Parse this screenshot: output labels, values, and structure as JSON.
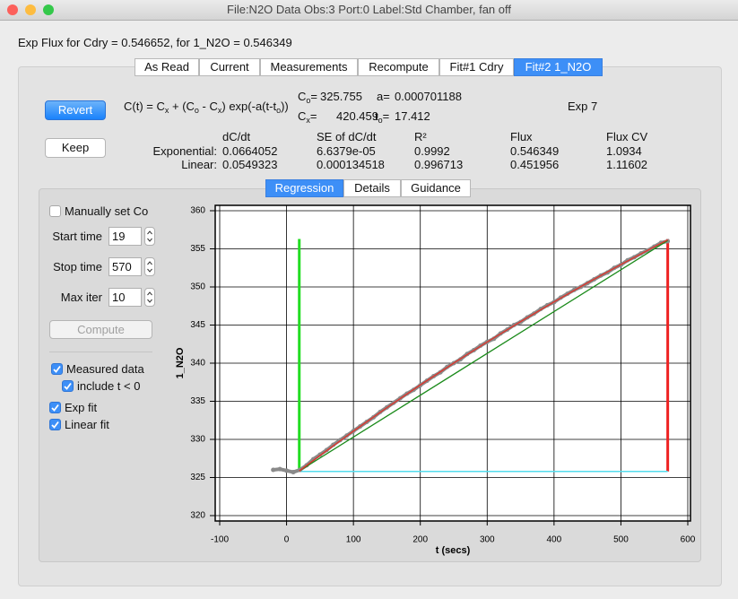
{
  "window": {
    "title": "File:N2O Data  Obs:3  Port:0  Label:Std Chamber, fan off"
  },
  "summary": "Exp Flux for Cdry = 0.546652, for 1_N2O = 0.546349",
  "tabs": {
    "items": [
      "As Read",
      "Current",
      "Measurements",
      "Recompute",
      "Fit#1 Cdry",
      "Fit#2 1_N2O"
    ],
    "active": 5
  },
  "buttons": {
    "revert": "Revert",
    "keep": "Keep"
  },
  "equation": [
    {
      "text": "C(t) = C"
    },
    {
      "text": "x",
      "sub": true
    },
    {
      "text": " + (C"
    },
    {
      "text": "o",
      "sub": true
    },
    {
      "text": " - C"
    },
    {
      "text": "x",
      "sub": true
    },
    {
      "text": ") exp(-a(t-t"
    },
    {
      "text": "o",
      "sub": true
    },
    {
      "text": "))"
    }
  ],
  "params": [
    {
      "name": "C",
      "sub": "o",
      "after": "=",
      "value": "325.755"
    },
    {
      "name": "a=",
      "value": "0.000701188"
    },
    {
      "name": "C",
      "sub": "x",
      "after": "=",
      "value": "420.459"
    },
    {
      "name": "t",
      "sub": "o",
      "after": "=",
      "value": "17.412"
    }
  ],
  "exp_label": "Exp 7",
  "results": {
    "columns": [
      "dC/dt",
      "SE of dC/dt",
      "R²",
      "Flux",
      "Flux CV"
    ],
    "rows": [
      {
        "label": "Exponential:",
        "cells": [
          "0.0664052",
          "6.6379e-05",
          "0.9992",
          "0.546349",
          "1.0934"
        ]
      },
      {
        "label": "Linear:",
        "cells": [
          "0.0549323",
          "0.000134518",
          "0.996713",
          "0.451956",
          "1.11602"
        ]
      }
    ]
  },
  "subtabs": {
    "items": [
      "Regression",
      "Details",
      "Guidance"
    ],
    "active": 0
  },
  "controls": {
    "manual_co": {
      "label": "Manually set Co",
      "checked": false
    },
    "fields": [
      {
        "label": "Start time",
        "value": "19"
      },
      {
        "label": "Stop time",
        "value": "570"
      },
      {
        "label": "Max iter",
        "value": "10"
      }
    ],
    "compute": "Compute",
    "checks": [
      {
        "label": "Measured data",
        "checked": true
      },
      {
        "label": "include t < 0",
        "checked": true,
        "indent": true
      },
      {
        "label": "Exp fit",
        "checked": true
      },
      {
        "label": "Linear fit",
        "checked": true
      }
    ]
  },
  "chart_data": {
    "type": "line",
    "xlabel": "t (secs)",
    "ylabel": "1_N2O",
    "xlim": [
      -100,
      600
    ],
    "xticks": [
      -100,
      0,
      100,
      200,
      300,
      400,
      500,
      600
    ],
    "ylim": [
      320,
      360
    ],
    "yticks": [
      320,
      325,
      330,
      335,
      340,
      345,
      350,
      355,
      360
    ],
    "grid": true,
    "series": [
      {
        "style": "points",
        "color": "#8a8a8a",
        "x": [
          -20,
          -10,
          0,
          10,
          20,
          30,
          40,
          50,
          60,
          70,
          80,
          90,
          100,
          110,
          120,
          130,
          140,
          150,
          160,
          170,
          180,
          190,
          200,
          210,
          220,
          230,
          240,
          250,
          260,
          270,
          280,
          290,
          300,
          310,
          320,
          330,
          340,
          350,
          360,
          370,
          380,
          390,
          400,
          410,
          420,
          430,
          440,
          450,
          460,
          470,
          480,
          490,
          500,
          510,
          520,
          530,
          540,
          550,
          560,
          570
        ],
        "values": [
          326.0,
          326.1,
          325.9,
          325.7,
          326.0,
          326.6,
          327.4,
          328.0,
          328.6,
          329.3,
          329.9,
          330.5,
          331.1,
          331.7,
          332.3,
          332.9,
          333.6,
          334.2,
          334.8,
          335.4,
          336.0,
          336.5,
          337.1,
          337.7,
          338.3,
          338.8,
          339.5,
          340.0,
          340.5,
          341.2,
          341.7,
          342.3,
          342.8,
          343.2,
          343.9,
          344.4,
          345.0,
          345.4,
          346.0,
          346.5,
          347.1,
          347.6,
          348.0,
          348.6,
          349.1,
          349.6,
          350.0,
          350.5,
          351.0,
          351.5,
          351.9,
          352.5,
          352.9,
          353.5,
          353.9,
          354.4,
          354.8,
          355.3,
          355.8,
          356.0
        ]
      },
      {
        "style": "line",
        "color": "#1a8a1a",
        "x": [
          19,
          570
        ],
        "values": [
          325.86,
          356.1
        ]
      },
      {
        "style": "line",
        "color": "#e0332a",
        "x": [
          19,
          50,
          100,
          150,
          200,
          250,
          300,
          350,
          400,
          450,
          500,
          550,
          570
        ],
        "values": [
          325.86,
          327.89,
          331.08,
          334.16,
          337.14,
          340.01,
          342.78,
          345.45,
          348.04,
          350.53,
          352.94,
          355.27,
          356.18
        ]
      }
    ],
    "markers": [
      {
        "orientation": "vertical",
        "color": "#22dd22",
        "x": 19,
        "y": [
          325.9,
          356.3
        ]
      },
      {
        "orientation": "vertical",
        "color": "#ee2222",
        "x": 570,
        "y": [
          325.8,
          356.3
        ]
      },
      {
        "orientation": "horizontal",
        "color": "#55ddee",
        "y": 325.8,
        "x": [
          19,
          570
        ]
      }
    ]
  }
}
